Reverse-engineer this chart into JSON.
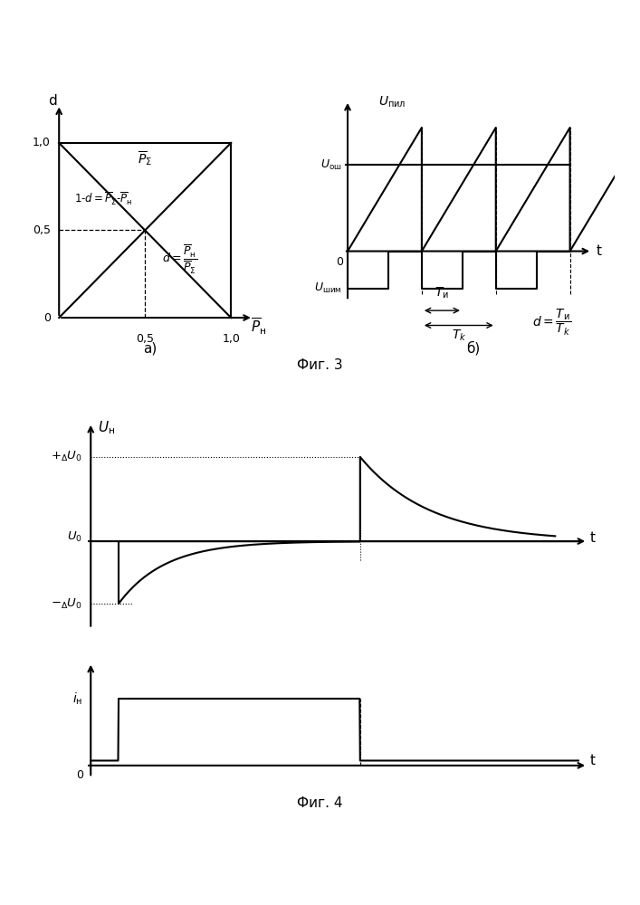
{
  "fig3_caption": "Фиг. 3",
  "fig4_caption": "Фиг. 4",
  "subplot_a_caption": "а)",
  "subplot_b_caption": "б)",
  "background_color": "#ffffff"
}
